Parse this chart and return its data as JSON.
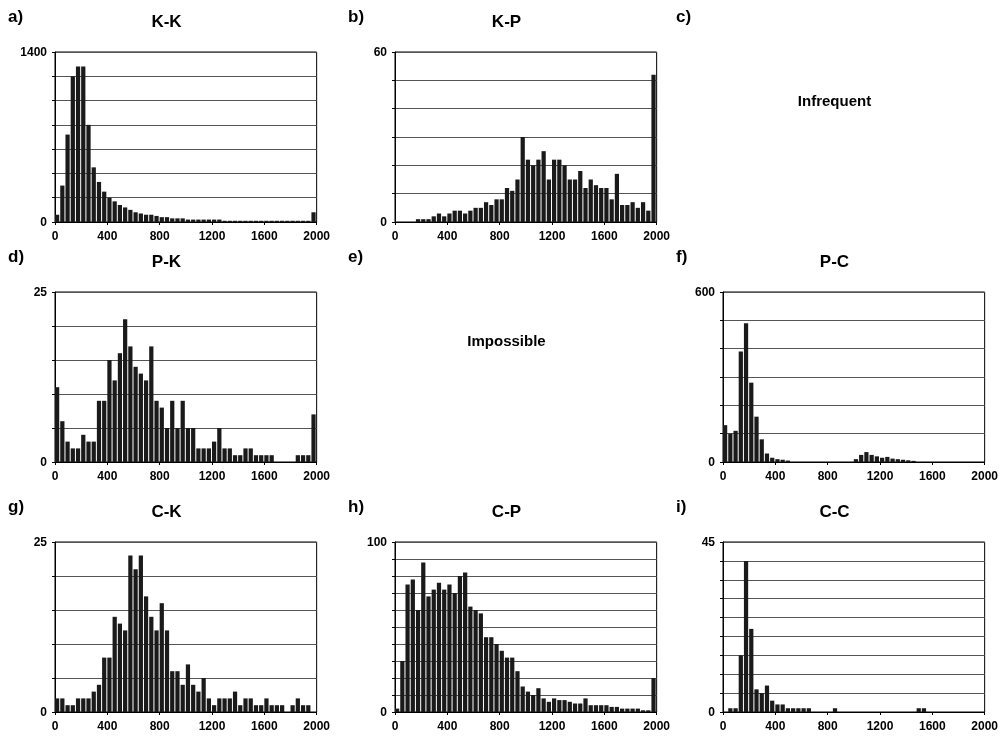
{
  "chart_data": [
    {
      "type": "histogram",
      "title": "K-K",
      "annotations": [
        "a)"
      ],
      "color": "#1a1a1a",
      "grid": "y",
      "xlim": [
        0,
        2000
      ],
      "xticks": [
        0,
        400,
        800,
        1200,
        1600,
        2000
      ],
      "ylim": [
        0,
        1400
      ],
      "yticks": [
        0,
        {
          "value": 200,
          "label": null
        },
        {
          "value": 400,
          "label": null
        },
        {
          "value": 600,
          "label": null
        },
        {
          "value": 800,
          "label": null
        },
        {
          "value": 1000,
          "label": null
        },
        {
          "value": 1200,
          "label": null
        },
        1400
      ],
      "bins": [
        0,
        40,
        80,
        120,
        160,
        200,
        240,
        280,
        320,
        360,
        400,
        440,
        480,
        520,
        560,
        600,
        640,
        680,
        720,
        760,
        800,
        840,
        880,
        920,
        960,
        1000,
        1040,
        1080,
        1120,
        1160,
        1200,
        1240,
        1280,
        1320,
        1360,
        1400,
        1440,
        1480,
        1520,
        1560,
        1600,
        1640,
        1680,
        1720,
        1760,
        1800,
        1840,
        1880,
        1920,
        1960,
        2000
      ],
      "values": [
        60,
        300,
        720,
        1200,
        1280,
        1280,
        800,
        450,
        330,
        250,
        200,
        170,
        140,
        120,
        100,
        80,
        70,
        60,
        60,
        50,
        40,
        40,
        30,
        30,
        30,
        20,
        20,
        20,
        20,
        20,
        20,
        20,
        10,
        10,
        10,
        10,
        10,
        10,
        10,
        10,
        10,
        10,
        10,
        10,
        10,
        10,
        10,
        10,
        10,
        80
      ]
    },
    {
      "type": "histogram",
      "title": "K-P",
      "annotations": [
        "b)"
      ],
      "color": "#1a1a1a",
      "grid": "y",
      "xlim": [
        0,
        2000
      ],
      "xticks": [
        0,
        400,
        800,
        1200,
        1600,
        2000
      ],
      "ylim": [
        0,
        60
      ],
      "yticks": [
        0,
        {
          "value": 10,
          "label": null
        },
        {
          "value": 20,
          "label": null
        },
        {
          "value": 30,
          "label": null
        },
        {
          "value": 40,
          "label": null
        },
        {
          "value": 50,
          "label": null
        },
        60
      ],
      "bins": [
        0,
        40,
        80,
        120,
        160,
        200,
        240,
        280,
        320,
        360,
        400,
        440,
        480,
        520,
        560,
        600,
        640,
        680,
        720,
        760,
        800,
        840,
        880,
        920,
        960,
        1000,
        1040,
        1080,
        1120,
        1160,
        1200,
        1240,
        1280,
        1320,
        1360,
        1400,
        1440,
        1480,
        1520,
        1560,
        1600,
        1640,
        1680,
        1720,
        1760,
        1800,
        1840,
        1880,
        1920,
        1960,
        2000
      ],
      "values": [
        0,
        0,
        0,
        0,
        1,
        1,
        1,
        2,
        3,
        2,
        3,
        4,
        4,
        3,
        4,
        5,
        5,
        7,
        6,
        8,
        8,
        12,
        11,
        15,
        30,
        22,
        20,
        22,
        25,
        15,
        22,
        22,
        20,
        15,
        15,
        18,
        12,
        15,
        13,
        12,
        12,
        8,
        17,
        6,
        6,
        7,
        5,
        7,
        4,
        52
      ]
    },
    {
      "type": "other",
      "annotations": [
        "c)",
        "Infrequent"
      ]
    },
    {
      "type": "histogram",
      "title": "P-K",
      "annotations": [
        "d)"
      ],
      "color": "#1a1a1a",
      "grid": "y",
      "xlim": [
        0,
        2000
      ],
      "xticks": [
        0,
        400,
        800,
        1200,
        1600,
        2000
      ],
      "ylim": [
        0,
        25
      ],
      "yticks": [
        0,
        {
          "value": 5,
          "label": null
        },
        {
          "value": 10,
          "label": null
        },
        {
          "value": 15,
          "label": null
        },
        {
          "value": 20,
          "label": null
        },
        25
      ],
      "bins": [
        0,
        40,
        80,
        120,
        160,
        200,
        240,
        280,
        320,
        360,
        400,
        440,
        480,
        520,
        560,
        600,
        640,
        680,
        720,
        760,
        800,
        840,
        880,
        920,
        960,
        1000,
        1040,
        1080,
        1120,
        1160,
        1200,
        1240,
        1280,
        1320,
        1360,
        1400,
        1440,
        1480,
        1520,
        1560,
        1600,
        1640,
        1680,
        1720,
        1760,
        1800,
        1840,
        1880,
        1920,
        1960,
        2000
      ],
      "values": [
        11,
        6,
        3,
        2,
        2,
        4,
        3,
        3,
        9,
        9,
        15,
        12,
        16,
        21,
        17,
        14,
        13,
        12,
        17,
        9,
        8,
        5,
        9,
        5,
        9,
        5,
        5,
        2,
        2,
        2,
        3,
        5,
        2,
        2,
        1,
        1,
        2,
        2,
        1,
        1,
        1,
        1,
        0,
        0,
        0,
        0,
        1,
        1,
        1,
        7
      ]
    },
    {
      "type": "other",
      "annotations": [
        "e)",
        "Impossible"
      ]
    },
    {
      "type": "histogram",
      "title": "P-C",
      "annotations": [
        "f)"
      ],
      "color": "#1a1a1a",
      "grid": "y",
      "xlim": [
        0,
        2000
      ],
      "xticks": [
        0,
        400,
        800,
        1200,
        1600,
        2000
      ],
      "ylim": [
        0,
        600
      ],
      "yticks": [
        0,
        {
          "value": 100,
          "label": null
        },
        {
          "value": 200,
          "label": null
        },
        {
          "value": 300,
          "label": null
        },
        {
          "value": 400,
          "label": null
        },
        {
          "value": 500,
          "label": null
        },
        600
      ],
      "bins": [
        0,
        40,
        80,
        120,
        160,
        200,
        240,
        280,
        320,
        360,
        400,
        440,
        480,
        520,
        560,
        600,
        640,
        680,
        720,
        760,
        800,
        840,
        880,
        920,
        960,
        1000,
        1040,
        1080,
        1120,
        1160,
        1200,
        1240,
        1280,
        1320,
        1360,
        1400,
        1440,
        1480,
        1520,
        1560,
        1600,
        1640,
        1680,
        1720,
        1760,
        1800,
        1840,
        1880,
        1920,
        1960,
        2000
      ],
      "values": [
        130,
        100,
        110,
        390,
        490,
        280,
        160,
        80,
        30,
        15,
        10,
        8,
        5,
        0,
        0,
        0,
        0,
        0,
        0,
        0,
        0,
        0,
        0,
        0,
        0,
        10,
        25,
        35,
        25,
        20,
        15,
        18,
        12,
        10,
        8,
        6,
        4,
        0,
        0,
        0,
        0,
        0,
        0,
        0,
        0,
        0,
        0,
        0,
        0,
        0
      ]
    },
    {
      "type": "histogram",
      "title": "C-K",
      "annotations": [
        "g)"
      ],
      "color": "#1a1a1a",
      "grid": "y",
      "xlim": [
        0,
        2000
      ],
      "xticks": [
        0,
        400,
        800,
        1200,
        1600,
        2000
      ],
      "ylim": [
        0,
        25
      ],
      "yticks": [
        0,
        {
          "value": 5,
          "label": null
        },
        {
          "value": 10,
          "label": null
        },
        {
          "value": 15,
          "label": null
        },
        {
          "value": 20,
          "label": null
        },
        25
      ],
      "bins": [
        0,
        40,
        80,
        120,
        160,
        200,
        240,
        280,
        320,
        360,
        400,
        440,
        480,
        520,
        560,
        600,
        640,
        680,
        720,
        760,
        800,
        840,
        880,
        920,
        960,
        1000,
        1040,
        1080,
        1120,
        1160,
        1200,
        1240,
        1280,
        1320,
        1360,
        1400,
        1440,
        1480,
        1520,
        1560,
        1600,
        1640,
        1680,
        1720,
        1760,
        1800,
        1840,
        1880,
        1920,
        1960,
        2000
      ],
      "values": [
        2,
        2,
        1,
        1,
        2,
        2,
        2,
        3,
        4,
        8,
        8,
        14,
        13,
        12,
        23,
        21,
        23,
        17,
        14,
        12,
        16,
        12,
        6,
        6,
        4,
        7,
        4,
        3,
        5,
        2,
        1,
        2,
        2,
        2,
        3,
        1,
        2,
        2,
        1,
        1,
        2,
        1,
        1,
        1,
        0,
        1,
        2,
        1,
        1,
        0
      ]
    },
    {
      "type": "histogram",
      "title": "C-P",
      "annotations": [
        "h)"
      ],
      "color": "#1a1a1a",
      "grid": "y",
      "xlim": [
        0,
        2000
      ],
      "xticks": [
        0,
        400,
        800,
        1200,
        1600,
        2000
      ],
      "ylim": [
        0,
        100
      ],
      "yticks": [
        0,
        {
          "value": 10,
          "label": null
        },
        {
          "value": 20,
          "label": null
        },
        {
          "value": 30,
          "label": null
        },
        {
          "value": 40,
          "label": null
        },
        {
          "value": 50,
          "label": null
        },
        {
          "value": 60,
          "label": null
        },
        {
          "value": 70,
          "label": null
        },
        {
          "value": 80,
          "label": null
        },
        {
          "value": 90,
          "label": null
        },
        100
      ],
      "bins": [
        0,
        40,
        80,
        120,
        160,
        200,
        240,
        280,
        320,
        360,
        400,
        440,
        480,
        520,
        560,
        600,
        640,
        680,
        720,
        760,
        800,
        840,
        880,
        920,
        960,
        1000,
        1040,
        1080,
        1120,
        1160,
        1200,
        1240,
        1280,
        1320,
        1360,
        1400,
        1440,
        1480,
        1520,
        1560,
        1600,
        1640,
        1680,
        1720,
        1760,
        1800,
        1840,
        1880,
        1920,
        1960,
        2000
      ],
      "values": [
        2,
        30,
        75,
        78,
        60,
        88,
        68,
        72,
        76,
        72,
        75,
        70,
        80,
        82,
        62,
        60,
        58,
        44,
        44,
        40,
        36,
        32,
        32,
        24,
        15,
        12,
        10,
        14,
        8,
        6,
        8,
        7,
        7,
        6,
        5,
        5,
        8,
        4,
        4,
        4,
        4,
        3,
        3,
        2,
        2,
        2,
        2,
        1,
        1,
        20
      ]
    },
    {
      "type": "histogram",
      "title": "C-C",
      "annotations": [
        "i)"
      ],
      "color": "#1a1a1a",
      "grid": "y",
      "xlim": [
        0,
        2000
      ],
      "xticks": [
        0,
        400,
        800,
        1200,
        1600,
        2000
      ],
      "ylim": [
        0,
        45
      ],
      "yticks": [
        0,
        {
          "value": 5,
          "label": null
        },
        {
          "value": 10,
          "label": null
        },
        {
          "value": 15,
          "label": null
        },
        {
          "value": 20,
          "label": null
        },
        {
          "value": 25,
          "label": null
        },
        {
          "value": 30,
          "label": null
        },
        {
          "value": 35,
          "label": null
        },
        {
          "value": 40,
          "label": null
        },
        45
      ],
      "bins": [
        0,
        40,
        80,
        120,
        160,
        200,
        240,
        280,
        320,
        360,
        400,
        440,
        480,
        520,
        560,
        600,
        640,
        680,
        720,
        760,
        800,
        840,
        880,
        920,
        960,
        1000,
        1040,
        1080,
        1120,
        1160,
        1200,
        1240,
        1280,
        1320,
        1360,
        1400,
        1440,
        1480,
        1520,
        1560,
        1600,
        1640,
        1680,
        1720,
        1760,
        1800,
        1840,
        1880,
        1920,
        1960,
        2000
      ],
      "values": [
        0,
        1,
        1,
        15,
        40,
        22,
        6,
        5,
        7,
        3,
        2,
        2,
        1,
        1,
        1,
        1,
        1,
        0,
        0,
        0,
        0,
        1,
        0,
        0,
        0,
        0,
        0,
        0,
        0,
        0,
        0,
        0,
        0,
        0,
        0,
        0,
        0,
        1,
        1,
        0,
        0,
        0,
        0,
        0,
        0,
        0,
        0,
        0,
        0,
        0
      ]
    }
  ]
}
